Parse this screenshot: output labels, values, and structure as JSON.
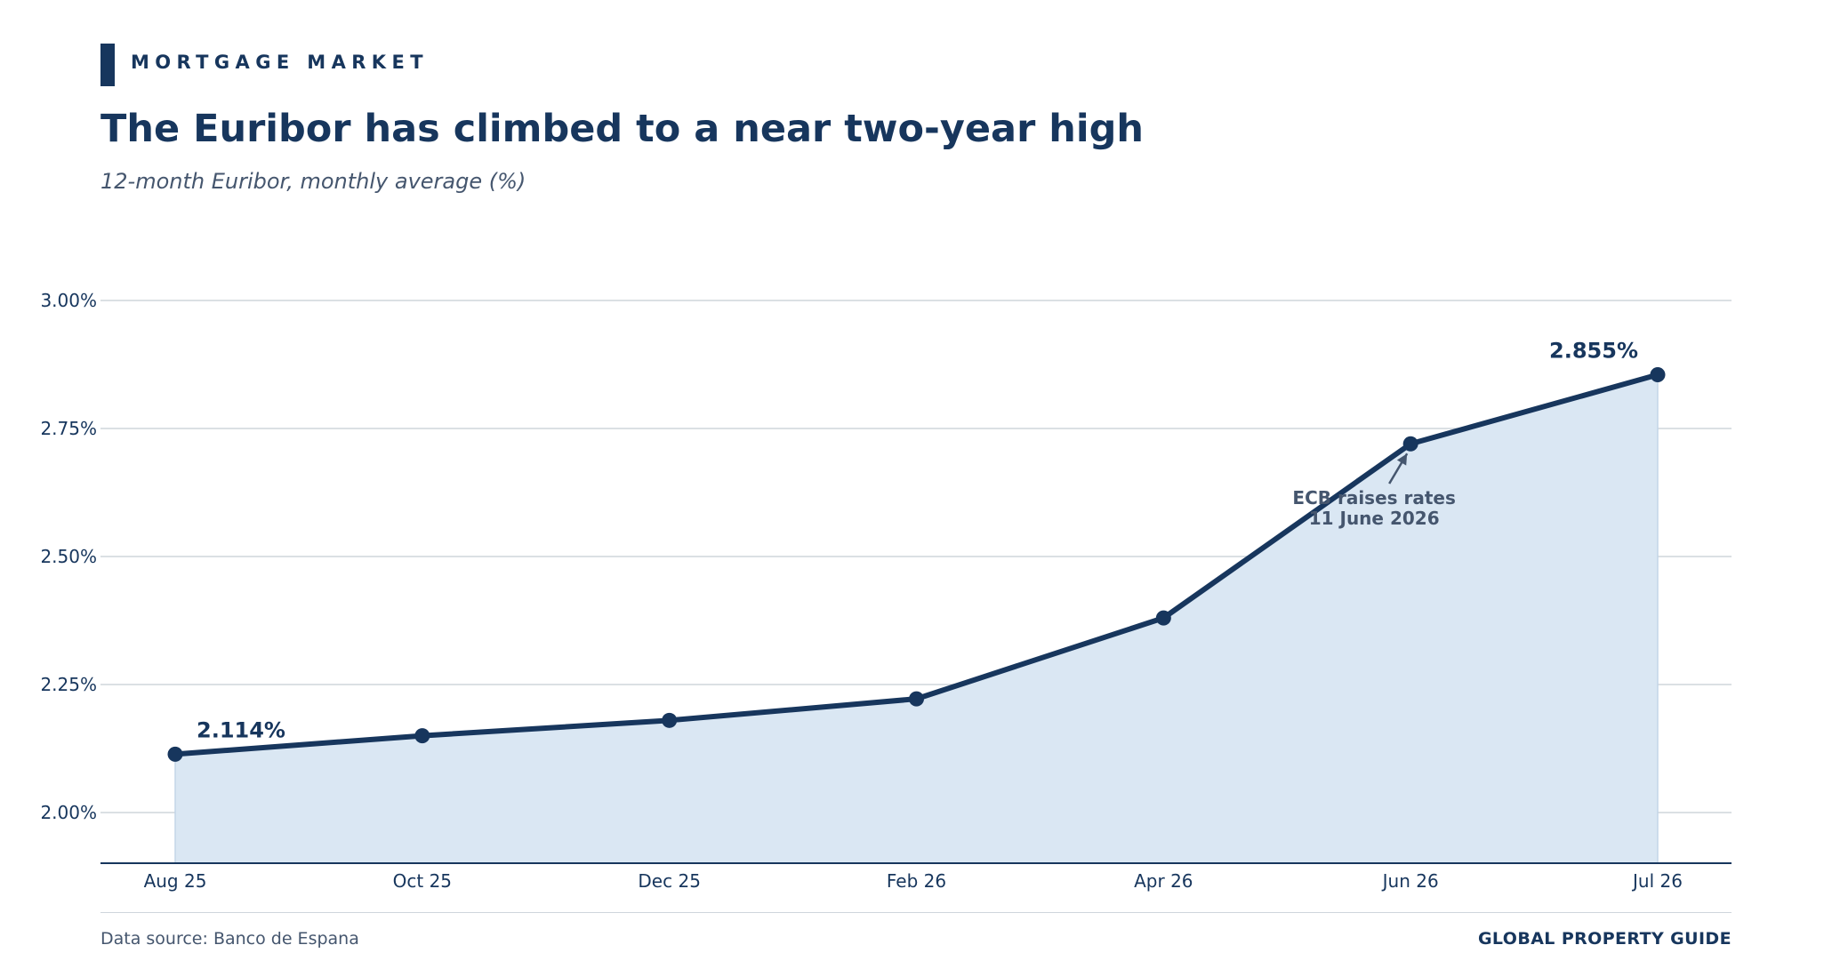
{
  "header": {
    "kicker": "MORTGAGE MARKET",
    "title": "The Euribor has climbed to a near two-year high",
    "subtitle": "12-month Euribor, monthly average (%)"
  },
  "colors": {
    "accent": "#17365d",
    "area_fill": "#dae7f3",
    "grid": "#cfd5dc",
    "muted_text": "#45566e"
  },
  "chart_data": {
    "type": "area",
    "categories": [
      "Aug 25",
      "Oct 25",
      "Dec 25",
      "Feb 26",
      "Apr 26",
      "Jun 26",
      "Jul 26"
    ],
    "series": [
      {
        "values": [
          2.114,
          2.15,
          2.18,
          2.222,
          2.38,
          2.72,
          2.855
        ]
      }
    ],
    "ylim": [
      1.9,
      3.05
    ],
    "y_ticks": [
      2.0,
      2.25,
      2.5,
      2.75,
      3.0
    ],
    "y_tick_labels": [
      "2.00%",
      "2.25%",
      "2.50%",
      "2.75%",
      "3.00%"
    ],
    "grid": true,
    "legend": "none",
    "data_labels": [
      {
        "index": 0,
        "text": "2.114%"
      },
      {
        "index": 6,
        "text": "2.855%"
      }
    ],
    "annotations": [
      {
        "index": 5,
        "lines": [
          "ECB raises rates",
          "11 June 2026"
        ]
      }
    ],
    "xlabel": "",
    "ylabel": ""
  },
  "footer": {
    "source": "Data source: Banco de Espana",
    "brand": "GLOBAL PROPERTY GUIDE"
  }
}
